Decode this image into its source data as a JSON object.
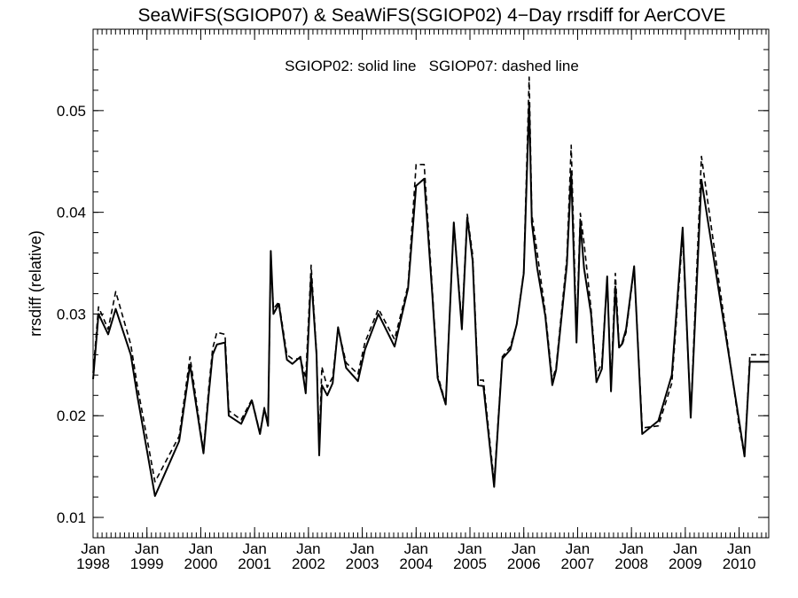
{
  "chart_data": {
    "type": "line",
    "title": "SeaWiFS(SGIOP07) & SeaWiFS(SGIOP02) 4−Day rrsdiff for AerCOVE",
    "xlabel": "",
    "ylabel": "rrsdiff (relative)",
    "legend_text": "SGIOP02: solid line   SGIOP07: dashed line",
    "legend_position": "top-center",
    "grid": false,
    "xlim": [
      1998.0,
      2010.55
    ],
    "ylim": [
      0.008,
      0.058
    ],
    "y_ticks": [
      "0.01",
      "0.02",
      "0.03",
      "0.04",
      "0.05"
    ],
    "x_ticks": [
      {
        "value": 1998,
        "month": "Jan",
        "year": "1998"
      },
      {
        "value": 1999,
        "month": "Jan",
        "year": "1999"
      },
      {
        "value": 2000,
        "month": "Jan",
        "year": "2000"
      },
      {
        "value": 2001,
        "month": "Jan",
        "year": "2001"
      },
      {
        "value": 2002,
        "month": "Jan",
        "year": "2002"
      },
      {
        "value": 2003,
        "month": "Jan",
        "year": "2003"
      },
      {
        "value": 2004,
        "month": "Jan",
        "year": "2004"
      },
      {
        "value": 2005,
        "month": "Jan",
        "year": "2005"
      },
      {
        "value": 2006,
        "month": "Jan",
        "year": "2006"
      },
      {
        "value": 2007,
        "month": "Jan",
        "year": "2007"
      },
      {
        "value": 2008,
        "month": "Jan",
        "year": "2008"
      },
      {
        "value": 2009,
        "month": "Jan",
        "year": "2009"
      },
      {
        "value": 2010,
        "month": "Jan",
        "year": "2010"
      }
    ],
    "series": [
      {
        "name": "SGIOP02",
        "style": "solid",
        "x": [
          1998.0,
          1998.1,
          1998.28,
          1998.42,
          1998.7,
          1998.82,
          1999.15,
          1999.6,
          1999.8,
          2000.05,
          2000.15,
          2000.22,
          2000.3,
          2000.45,
          2000.52,
          2000.75,
          2000.95,
          2001.1,
          2001.18,
          2001.25,
          2001.3,
          2001.35,
          2001.45,
          2001.6,
          2001.7,
          2001.85,
          2001.95,
          2002.05,
          2002.15,
          2002.2,
          2002.25,
          2002.35,
          2002.45,
          2002.55,
          2002.7,
          2002.92,
          2003.05,
          2003.3,
          2003.6,
          2003.85,
          2004.0,
          2004.15,
          2004.3,
          2004.4,
          2004.55,
          2004.7,
          2004.85,
          2004.95,
          2005.05,
          2005.15,
          2005.25,
          2005.45,
          2005.6,
          2005.75,
          2005.87,
          2006.0,
          2006.1,
          2006.15,
          2006.25,
          2006.4,
          2006.53,
          2006.6,
          2006.8,
          2006.88,
          2006.98,
          2007.05,
          2007.12,
          2007.25,
          2007.35,
          2007.45,
          2007.55,
          2007.62,
          2007.7,
          2007.77,
          2007.82,
          2007.9,
          2008.05,
          2008.2,
          2008.5,
          2008.75,
          2008.95,
          2009.1,
          2009.3,
          2010.0,
          2010.1,
          2010.2,
          2010.32,
          2010.4,
          2010.48,
          2010.55
        ],
        "y": [
          0.0236,
          0.03,
          0.028,
          0.0305,
          0.026,
          0.022,
          0.0121,
          0.0175,
          0.025,
          0.0163,
          0.0222,
          0.026,
          0.027,
          0.0272,
          0.02,
          0.0192,
          0.0215,
          0.0182,
          0.0207,
          0.019,
          0.0362,
          0.03,
          0.031,
          0.0255,
          0.0251,
          0.0258,
          0.0222,
          0.0338,
          0.026,
          0.0161,
          0.023,
          0.022,
          0.0232,
          0.0287,
          0.0247,
          0.0234,
          0.0265,
          0.03,
          0.0268,
          0.0325,
          0.0426,
          0.0433,
          0.032,
          0.0237,
          0.0211,
          0.039,
          0.0285,
          0.0395,
          0.0352,
          0.023,
          0.0229,
          0.013,
          0.0256,
          0.0265,
          0.029,
          0.034,
          0.0508,
          0.039,
          0.0345,
          0.0298,
          0.023,
          0.0245,
          0.0348,
          0.044,
          0.0272,
          0.039,
          0.0345,
          0.03,
          0.0233,
          0.0246,
          0.0337,
          0.0224,
          0.0327,
          0.0267,
          0.027,
          0.0285,
          0.0347,
          0.0182,
          0.0195,
          0.024,
          0.0385,
          0.0198,
          0.0432,
          0.0195,
          0.016,
          0.0253,
          0.0253,
          0.0253,
          0.0253,
          0.0253
        ]
      },
      {
        "name": "SGIOP07",
        "style": "dashed",
        "x": [
          1998.0,
          1998.1,
          1998.28,
          1998.42,
          1998.7,
          1998.82,
          1999.15,
          1999.6,
          1999.8,
          2000.05,
          2000.15,
          2000.22,
          2000.3,
          2000.45,
          2000.52,
          2000.75,
          2000.95,
          2001.1,
          2001.18,
          2001.25,
          2001.3,
          2001.35,
          2001.45,
          2001.6,
          2001.7,
          2001.85,
          2001.95,
          2002.05,
          2002.15,
          2002.2,
          2002.25,
          2002.35,
          2002.45,
          2002.55,
          2002.7,
          2002.92,
          2003.05,
          2003.3,
          2003.6,
          2003.85,
          2004.0,
          2004.15,
          2004.3,
          2004.4,
          2004.55,
          2004.7,
          2004.85,
          2004.95,
          2005.05,
          2005.15,
          2005.25,
          2005.45,
          2005.6,
          2005.75,
          2005.87,
          2006.0,
          2006.1,
          2006.15,
          2006.25,
          2006.4,
          2006.53,
          2006.6,
          2006.8,
          2006.88,
          2006.98,
          2007.05,
          2007.12,
          2007.25,
          2007.35,
          2007.45,
          2007.55,
          2007.62,
          2007.7,
          2007.77,
          2007.82,
          2007.9,
          2008.05,
          2008.2,
          2008.5,
          2008.75,
          2008.95,
          2009.1,
          2009.3,
          2010.0,
          2010.1,
          2010.2,
          2010.32,
          2010.4,
          2010.48,
          2010.55
        ],
        "y": [
          0.0242,
          0.0307,
          0.0285,
          0.0322,
          0.027,
          0.023,
          0.0135,
          0.018,
          0.0258,
          0.0165,
          0.0228,
          0.0266,
          0.0282,
          0.028,
          0.0205,
          0.0196,
          0.0216,
          0.0183,
          0.0208,
          0.0192,
          0.0355,
          0.0305,
          0.0312,
          0.026,
          0.0256,
          0.0256,
          0.0237,
          0.0348,
          0.0262,
          0.017,
          0.0248,
          0.0228,
          0.0238,
          0.0286,
          0.0252,
          0.0241,
          0.0272,
          0.0305,
          0.0275,
          0.0328,
          0.0447,
          0.0447,
          0.0325,
          0.024,
          0.0212,
          0.039,
          0.029,
          0.0398,
          0.0358,
          0.0235,
          0.0235,
          0.0135,
          0.0258,
          0.0268,
          0.029,
          0.0342,
          0.0533,
          0.0398,
          0.036,
          0.0302,
          0.0235,
          0.0248,
          0.0355,
          0.0466,
          0.028,
          0.0399,
          0.037,
          0.0305,
          0.024,
          0.0252,
          0.0335,
          0.023,
          0.034,
          0.027,
          0.0268,
          0.0282,
          0.0345,
          0.0188,
          0.019,
          0.0232,
          0.0378,
          0.02,
          0.0455,
          0.019,
          0.016,
          0.026,
          0.026,
          0.026,
          0.026,
          0.026
        ]
      }
    ]
  }
}
